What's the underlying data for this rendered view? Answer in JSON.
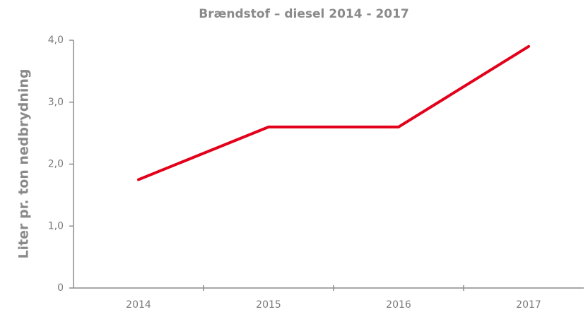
{
  "chart_data": {
    "type": "line",
    "title": "Brændstof – diesel 2014 - 2017",
    "y_label": "Liter pr. ton nedbrydning",
    "categories": [
      "2014",
      "2015",
      "2016",
      "2017"
    ],
    "values": [
      1.75,
      2.6,
      2.6,
      3.9
    ],
    "color": "#e2001a",
    "ylim": [
      0,
      4
    ],
    "yticks": [
      0,
      {
        "value": 1,
        "label": "1,0"
      },
      {
        "value": 2,
        "label": "2,0"
      },
      {
        "value": 3,
        "label": "3,0"
      },
      {
        "value": 4,
        "label": "4,0"
      }
    ],
    "grid": false
  }
}
